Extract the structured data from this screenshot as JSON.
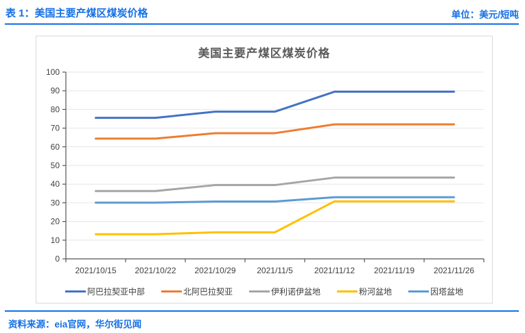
{
  "header": {
    "title": "表 1：美国主要产煤区煤炭价格",
    "unit": "单位：美元/短吨"
  },
  "footer": {
    "source": "资料来源：eia官网，华尔街见闻"
  },
  "colors": {
    "accent_blue": "#1570E6",
    "axis": "#555555",
    "grid": "#E6E6E6",
    "tick_label": "#404040",
    "title_gray": "#595959",
    "card_border": "#D9D9D9"
  },
  "chart_data": {
    "type": "line",
    "title": "美国主要产煤区煤炭价格",
    "categories": [
      "2021/10/15",
      "2021/10/22",
      "2021/10/29",
      "2021/11/5",
      "2021/11/12",
      "2021/11/19",
      "2021/11/26"
    ],
    "series": [
      {
        "name": "阿巴拉契亚中部",
        "color": "#4472C4",
        "values": [
          75.5,
          75.5,
          78.8,
          78.8,
          89.5,
          89.5,
          89.5
        ]
      },
      {
        "name": "北阿巴拉契亚",
        "color": "#ED7D31",
        "values": [
          64.4,
          64.4,
          67.3,
          67.3,
          72.0,
          72.0,
          72.0
        ]
      },
      {
        "name": "伊利诺伊盆地",
        "color": "#A5A5A5",
        "values": [
          36.3,
          36.3,
          39.5,
          39.5,
          43.5,
          43.5,
          43.5
        ]
      },
      {
        "name": "粉河盆地",
        "color": "#FFC000",
        "values": [
          13.2,
          13.2,
          14.2,
          14.2,
          30.8,
          30.8,
          30.8
        ]
      },
      {
        "name": "因塔盆地",
        "color": "#5B9BD5",
        "values": [
          30.1,
          30.1,
          30.7,
          30.7,
          33.0,
          33.0,
          33.0
        ]
      }
    ],
    "ylim": [
      0,
      100
    ],
    "ytick_step": 10,
    "grid": true,
    "legend_position": "bottom",
    "xlabel": "",
    "ylabel": ""
  }
}
